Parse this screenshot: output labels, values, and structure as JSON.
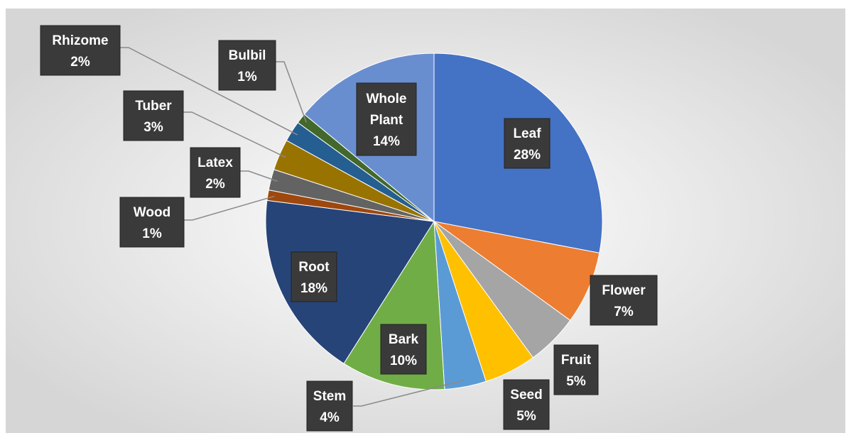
{
  "chart_data": {
    "type": "pie",
    "title": "",
    "slices": [
      {
        "label": "Leaf",
        "value": 28,
        "display": "28%",
        "color": "#4472C4"
      },
      {
        "label": "Flower",
        "value": 7,
        "display": "7%",
        "color": "#ED7D31"
      },
      {
        "label": "Fruit",
        "value": 5,
        "display": "5%",
        "color": "#A5A5A5"
      },
      {
        "label": "Seed",
        "value": 5,
        "display": "5%",
        "color": "#FFC000"
      },
      {
        "label": "Stem",
        "value": 4,
        "display": "4%",
        "color": "#5B9BD5"
      },
      {
        "label": "Bark",
        "value": 10,
        "display": "10%",
        "color": "#70AD47"
      },
      {
        "label": "Root",
        "value": 18,
        "display": "18%",
        "color": "#264478"
      },
      {
        "label": "Wood",
        "value": 1,
        "display": "1%",
        "color": "#9E480E"
      },
      {
        "label": "Latex",
        "value": 2,
        "display": "2%",
        "color": "#636363"
      },
      {
        "label": "Tuber",
        "value": 3,
        "display": "3%",
        "color": "#997300"
      },
      {
        "label": "Rhizome",
        "value": 2,
        "display": "2%",
        "color": "#255E91"
      },
      {
        "label": "Bulbil",
        "value": 1,
        "display": "1%",
        "color": "#43682B"
      },
      {
        "label": "Whole Plant",
        "value": 14,
        "display": "14%",
        "color": "#698ED0"
      }
    ],
    "legend": "none",
    "data_labels": "category and percentage, dark callout boxes"
  }
}
